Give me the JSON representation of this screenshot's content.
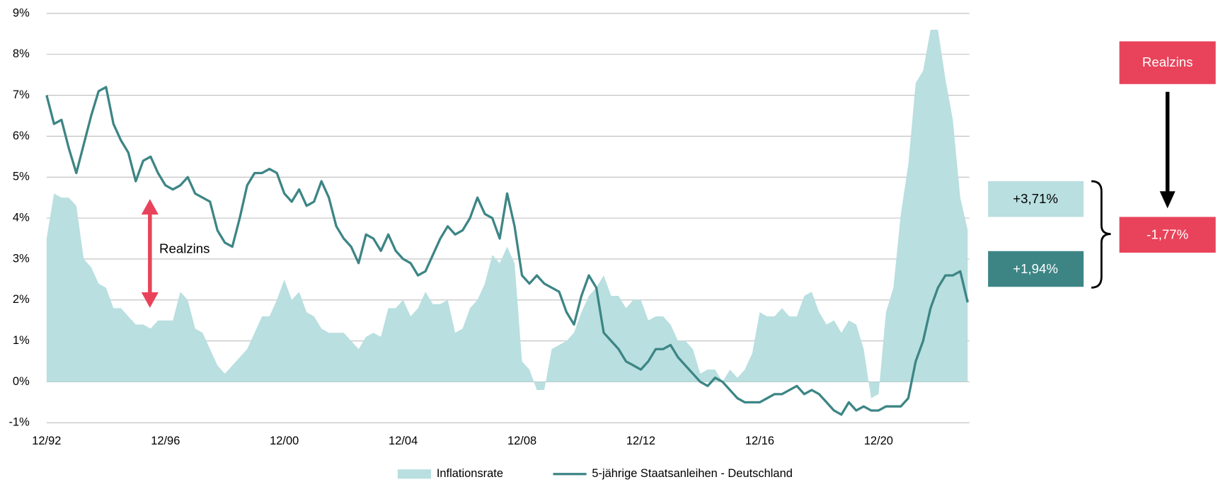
{
  "chart_data": {
    "type": "area-line",
    "x": [
      "12/92",
      "03/93",
      "06/93",
      "09/93",
      "12/93",
      "03/94",
      "06/94",
      "09/94",
      "12/94",
      "03/95",
      "06/95",
      "09/95",
      "12/95",
      "03/96",
      "06/96",
      "09/96",
      "12/96",
      "03/97",
      "06/97",
      "09/97",
      "12/97",
      "03/98",
      "06/98",
      "09/98",
      "12/98",
      "03/99",
      "06/99",
      "09/99",
      "12/99",
      "03/00",
      "06/00",
      "09/00",
      "12/00",
      "03/01",
      "06/01",
      "09/01",
      "12/01",
      "03/02",
      "06/02",
      "09/02",
      "12/02",
      "03/03",
      "06/03",
      "09/03",
      "12/03",
      "03/04",
      "06/04",
      "09/04",
      "12/04",
      "03/05",
      "06/05",
      "09/05",
      "12/05",
      "03/06",
      "06/06",
      "09/06",
      "12/06",
      "03/07",
      "06/07",
      "09/07",
      "12/07",
      "03/08",
      "06/08",
      "09/08",
      "12/08",
      "03/09",
      "06/09",
      "09/09",
      "12/09",
      "03/10",
      "06/10",
      "09/10",
      "12/10",
      "03/11",
      "06/11",
      "09/11",
      "12/11",
      "03/12",
      "06/12",
      "09/12",
      "12/12",
      "03/13",
      "06/13",
      "09/13",
      "12/13",
      "03/14",
      "06/14",
      "09/14",
      "12/14",
      "03/15",
      "06/15",
      "09/15",
      "12/15",
      "03/16",
      "06/16",
      "09/16",
      "12/16",
      "03/17",
      "06/17",
      "09/17",
      "12/17",
      "03/18",
      "06/18",
      "09/18",
      "12/18",
      "03/19",
      "06/19",
      "09/19",
      "12/19",
      "03/20",
      "06/20",
      "09/20",
      "12/20",
      "03/21",
      "06/21",
      "09/21",
      "12/21",
      "03/22",
      "06/22",
      "09/22",
      "12/22",
      "03/23",
      "06/23",
      "09/23",
      "12/23"
    ],
    "xticks": [
      "12/92",
      "12/96",
      "12/00",
      "12/04",
      "12/08",
      "12/12",
      "12/16",
      "12/20"
    ],
    "ylim": [
      -1,
      9
    ],
    "yticks": [
      {
        "value": -1,
        "label": "-1%"
      },
      {
        "value": 0,
        "label": "0%"
      },
      {
        "value": 1,
        "label": "1%"
      },
      {
        "value": 2,
        "label": "2%"
      },
      {
        "value": 3,
        "label": "3%"
      },
      {
        "value": 4,
        "label": "4%"
      },
      {
        "value": 5,
        "label": "5%"
      },
      {
        "value": 6,
        "label": "6%"
      },
      {
        "value": 7,
        "label": "7%"
      },
      {
        "value": 8,
        "label": "8%"
      },
      {
        "value": 9,
        "label": "9%"
      }
    ],
    "grid": true,
    "legend": "bottom",
    "series": [
      {
        "name": "Inflationsrate",
        "kind": "area",
        "color": "#b9dfe0",
        "end_label": "+3,71%",
        "values": [
          3.5,
          4.6,
          4.5,
          4.5,
          4.3,
          3.0,
          2.8,
          2.4,
          2.3,
          1.8,
          1.8,
          1.6,
          1.4,
          1.4,
          1.3,
          1.5,
          1.5,
          1.5,
          2.2,
          2.0,
          1.3,
          1.2,
          0.8,
          0.4,
          0.2,
          0.4,
          0.6,
          0.8,
          1.2,
          1.6,
          1.6,
          2.0,
          2.5,
          2.0,
          2.2,
          1.7,
          1.6,
          1.3,
          1.2,
          1.2,
          1.2,
          1.0,
          0.8,
          1.1,
          1.2,
          1.1,
          1.8,
          1.8,
          2.0,
          1.6,
          1.8,
          2.2,
          1.9,
          1.9,
          2.0,
          1.2,
          1.3,
          1.8,
          2.0,
          2.4,
          3.1,
          2.9,
          3.3,
          2.9,
          0.5,
          0.3,
          -0.2,
          -0.2,
          0.8,
          0.9,
          1.0,
          1.2,
          1.7,
          2.1,
          2.3,
          2.6,
          2.1,
          2.1,
          1.8,
          2.0,
          2.0,
          1.5,
          1.6,
          1.6,
          1.4,
          1.0,
          1.0,
          0.8,
          0.2,
          0.3,
          0.3,
          0.0,
          0.3,
          0.1,
          0.3,
          0.7,
          1.7,
          1.6,
          1.6,
          1.8,
          1.6,
          1.6,
          2.1,
          2.2,
          1.7,
          1.4,
          1.5,
          1.2,
          1.5,
          1.4,
          0.8,
          -0.4,
          -0.3,
          1.7,
          2.3,
          4.1,
          5.3,
          7.3,
          7.6,
          8.6,
          8.6,
          7.4,
          6.4,
          4.5,
          3.71
        ]
      },
      {
        "name": "5-jährige Staatsanleihen - Deutschland",
        "kind": "line",
        "color": "#3d8585",
        "end_label": "+1,94%",
        "values": [
          7.0,
          6.3,
          6.4,
          5.7,
          5.1,
          5.8,
          6.5,
          7.1,
          7.2,
          6.3,
          5.9,
          5.6,
          4.9,
          5.4,
          5.5,
          5.1,
          4.8,
          4.7,
          4.8,
          5.0,
          4.6,
          4.5,
          4.4,
          3.7,
          3.4,
          3.3,
          4.0,
          4.8,
          5.1,
          5.1,
          5.2,
          5.1,
          4.6,
          4.4,
          4.7,
          4.3,
          4.4,
          4.9,
          4.5,
          3.8,
          3.5,
          3.3,
          2.9,
          3.6,
          3.5,
          3.2,
          3.6,
          3.2,
          3.0,
          2.9,
          2.6,
          2.7,
          3.1,
          3.5,
          3.8,
          3.6,
          3.7,
          4.0,
          4.5,
          4.1,
          4.0,
          3.5,
          4.6,
          3.8,
          2.6,
          2.4,
          2.6,
          2.4,
          2.3,
          2.2,
          1.7,
          1.4,
          2.1,
          2.6,
          2.3,
          1.2,
          1.0,
          0.8,
          0.5,
          0.4,
          0.3,
          0.5,
          0.8,
          0.8,
          0.9,
          0.6,
          0.4,
          0.2,
          0.0,
          -0.1,
          0.1,
          0.0,
          -0.2,
          -0.4,
          -0.5,
          -0.5,
          -0.5,
          -0.4,
          -0.3,
          -0.3,
          -0.2,
          -0.1,
          -0.3,
          -0.2,
          -0.3,
          -0.5,
          -0.7,
          -0.8,
          -0.5,
          -0.7,
          -0.6,
          -0.7,
          -0.7,
          -0.6,
          -0.6,
          -0.6,
          -0.4,
          0.5,
          1.0,
          1.8,
          2.3,
          2.6,
          2.6,
          2.7,
          1.94
        ]
      }
    ],
    "annotations": {
      "arrow_label": "Realzins",
      "real_rate_title": "Realzins",
      "real_rate": "-1,77%"
    }
  }
}
